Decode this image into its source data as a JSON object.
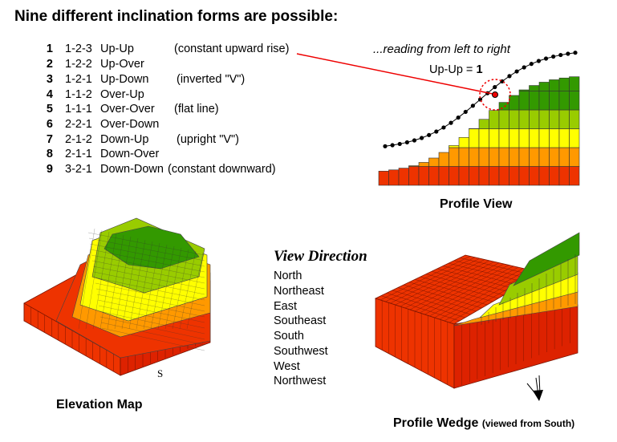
{
  "title": "Nine different inclination forms are possible:",
  "forms": [
    {
      "num": "1",
      "code": "1-2-3",
      "name": "Up-Up",
      "note": "(constant upward rise)"
    },
    {
      "num": "2",
      "code": "1-2-2",
      "name": "Up-Over",
      "note": ""
    },
    {
      "num": "3",
      "code": "1-2-1",
      "name": "Up-Down",
      "note": "(inverted \"V\")"
    },
    {
      "num": "4",
      "code": "1-1-2",
      "name": "Over-Up",
      "note": ""
    },
    {
      "num": "5",
      "code": "1-1-1",
      "name": "Over-Over",
      "note": "(flat line)"
    },
    {
      "num": "6",
      "code": "2-2-1",
      "name": "Over-Down",
      "note": ""
    },
    {
      "num": "7",
      "code": "2-1-2",
      "name": "Down-Up",
      "note": "(upright \"V\")"
    },
    {
      "num": "8",
      "code": "2-1-1",
      "name": "Down-Over",
      "note": ""
    },
    {
      "num": "9",
      "code": "3-2-1",
      "name": "Down-Down",
      "note": "(constant downward)"
    }
  ],
  "profile": {
    "reading_note": "...reading from left to right",
    "upup_text": "Up-Up = ",
    "upup_value": "1",
    "label": "Profile View",
    "colors": {
      "red": "#ee3300",
      "orange": "#ff9900",
      "yellow": "#ffff00",
      "light_green": "#99cc00",
      "green": "#339900"
    }
  },
  "view_direction": {
    "title": "View Direction",
    "items": [
      "North",
      "Northeast",
      "East",
      "Southeast",
      "South",
      "Southwest",
      "West",
      "Northwest"
    ]
  },
  "elevation_map": {
    "label": "Elevation Map",
    "compass_letter": "S"
  },
  "profile_wedge": {
    "label": "Profile Wedge",
    "sublabel": "(viewed from South)"
  }
}
